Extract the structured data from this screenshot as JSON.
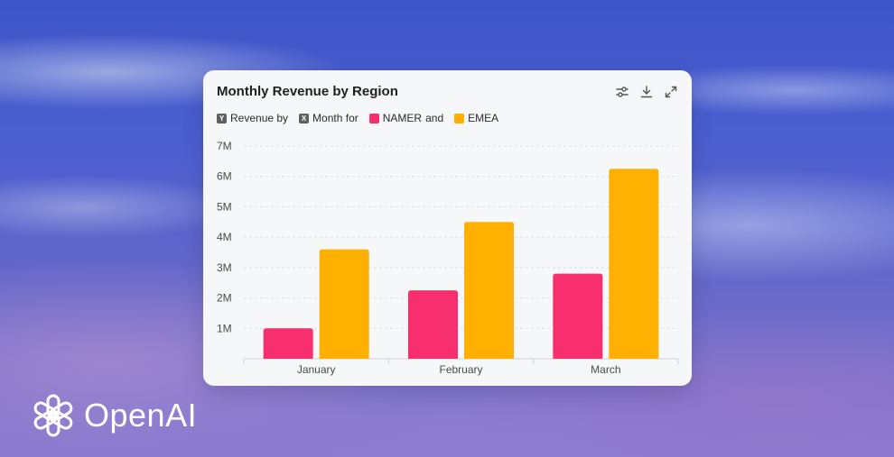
{
  "brand": {
    "name": "OpenAI"
  },
  "card": {
    "title": "Monthly Revenue by Region",
    "toolbar": [
      {
        "name": "filter-settings-icon"
      },
      {
        "name": "download-icon"
      },
      {
        "name": "expand-icon"
      }
    ],
    "legend": {
      "y_tag": "Y",
      "y_text": "Revenue by",
      "x_tag": "X",
      "x_text": "Month for",
      "series1": "NAMER",
      "joiner": "and",
      "series2": "EMEA"
    }
  },
  "chart_data": {
    "type": "bar",
    "categories": [
      "January",
      "February",
      "March"
    ],
    "series": [
      {
        "name": "NAMER",
        "color": "#f72f6f",
        "values": [
          1000000,
          2250000,
          2800000
        ]
      },
      {
        "name": "EMEA",
        "color": "#ffb000",
        "values": [
          3600000,
          4500000,
          6250000
        ]
      }
    ],
    "ylim": [
      0,
      7000000
    ],
    "yticks": [
      1000000,
      2000000,
      3000000,
      4000000,
      5000000,
      6000000,
      7000000
    ],
    "ytick_labels": [
      "1M",
      "2M",
      "3M",
      "4M",
      "5M",
      "6M",
      "7M"
    ],
    "grid": true,
    "legend_position": "top-left"
  }
}
